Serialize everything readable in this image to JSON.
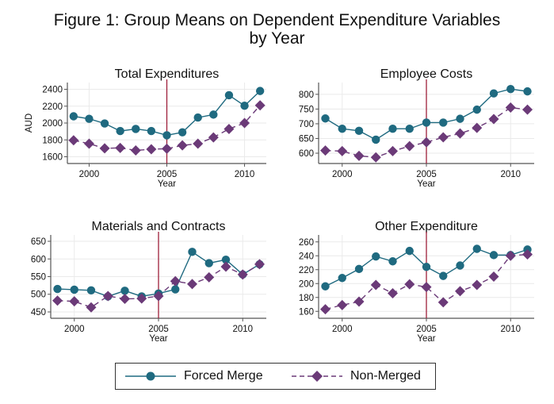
{
  "title": "Figure 1: Group Means on Dependent Expenditure Variables by Year",
  "title_lines": [
    "Figure 1: Group Means on Dependent Expenditure Variables",
    "by Year"
  ],
  "colors": {
    "forced_merge": "#1f6a80",
    "non_merged": "#6b3a78",
    "vline": "#9e1f3a",
    "grid": "#eaeaea",
    "axis": "#555555"
  },
  "legend": {
    "position": "bottom-center",
    "items": [
      {
        "label": "Forced Merge",
        "marker": "circle",
        "line": "solid"
      },
      {
        "label": "Non-Merged",
        "marker": "diamond",
        "line": "dashed"
      }
    ]
  },
  "chart_data": [
    {
      "type": "line",
      "title": "Total Expenditures",
      "xlabel": "Year",
      "ylabel": "AUD",
      "x": [
        1999,
        2000,
        2001,
        2002,
        2003,
        2004,
        2005,
        2006,
        2007,
        2008,
        2009,
        2010,
        2011
      ],
      "xticks": [
        2000,
        2005,
        2010
      ],
      "xlim": [
        1998.6,
        2011.4
      ],
      "yticks": [
        1600,
        1800,
        2000,
        2200,
        2400
      ],
      "ylim": [
        1520,
        2480
      ],
      "vline": 2005,
      "grid": true,
      "series": [
        {
          "name": "Forced Merge",
          "values": [
            2080,
            2050,
            1995,
            1905,
            1930,
            1905,
            1855,
            1890,
            2065,
            2100,
            2330,
            2205,
            2380
          ]
        },
        {
          "name": "Non-Merged",
          "values": [
            1795,
            1755,
            1700,
            1705,
            1675,
            1690,
            1695,
            1735,
            1755,
            1830,
            1930,
            2000,
            2210
          ]
        }
      ]
    },
    {
      "type": "line",
      "title": "Employee Costs",
      "xlabel": "Year",
      "ylabel": "",
      "x": [
        1999,
        2000,
        2001,
        2002,
        2003,
        2004,
        2005,
        2006,
        2007,
        2008,
        2009,
        2010,
        2011
      ],
      "xticks": [
        2000,
        2005,
        2010
      ],
      "xlim": [
        1998.6,
        2011.4
      ],
      "yticks": [
        600,
        650,
        700,
        750,
        800
      ],
      "ylim": [
        565,
        840
      ],
      "vline": 2005,
      "grid": true,
      "series": [
        {
          "name": "Forced Merge",
          "values": [
            718,
            683,
            676,
            646,
            683,
            683,
            704,
            704,
            717,
            748,
            803,
            818,
            810
          ]
        },
        {
          "name": "Non-Merged",
          "values": [
            609,
            607,
            591,
            586,
            607,
            624,
            637,
            654,
            667,
            686,
            716,
            755,
            748
          ]
        }
      ]
    },
    {
      "type": "line",
      "title": "Materials and Contracts",
      "xlabel": "Year",
      "ylabel": "",
      "x": [
        1999,
        2000,
        2001,
        2002,
        2003,
        2004,
        2005,
        2006,
        2007,
        2008,
        2009,
        2010,
        2011
      ],
      "xticks": [
        2000,
        2005,
        2010
      ],
      "xlim": [
        1998.6,
        2011.4
      ],
      "yticks": [
        450,
        500,
        550,
        600,
        650
      ],
      "ylim": [
        432,
        668
      ],
      "vline": 2005,
      "grid": true,
      "series": [
        {
          "name": "Forced Merge",
          "values": [
            515,
            513,
            511,
            494,
            510,
            494,
            502,
            514,
            620,
            588,
            598,
            556,
            585
          ]
        },
        {
          "name": "Non-Merged",
          "values": [
            482,
            480,
            463,
            495,
            487,
            488,
            495,
            537,
            529,
            548,
            578,
            556,
            585
          ]
        }
      ]
    },
    {
      "type": "line",
      "title": "Other Expenditure",
      "xlabel": "Year",
      "ylabel": "",
      "x": [
        1999,
        2000,
        2001,
        2002,
        2003,
        2004,
        2005,
        2006,
        2007,
        2008,
        2009,
        2010,
        2011
      ],
      "xticks": [
        2000,
        2005,
        2010
      ],
      "xlim": [
        1998.6,
        2011.4
      ],
      "yticks": [
        160,
        180,
        200,
        220,
        240,
        260
      ],
      "ylim": [
        150,
        270
      ],
      "vline": 2005,
      "grid": true,
      "series": [
        {
          "name": "Forced Merge",
          "values": [
            196,
            208,
            221,
            239,
            232,
            247,
            224,
            211,
            226,
            250,
            241,
            241,
            249
          ]
        },
        {
          "name": "Non-Merged",
          "values": [
            163,
            169,
            174,
            198,
            186,
            199,
            195,
            173,
            189,
            198,
            210,
            240,
            242
          ]
        }
      ]
    }
  ]
}
